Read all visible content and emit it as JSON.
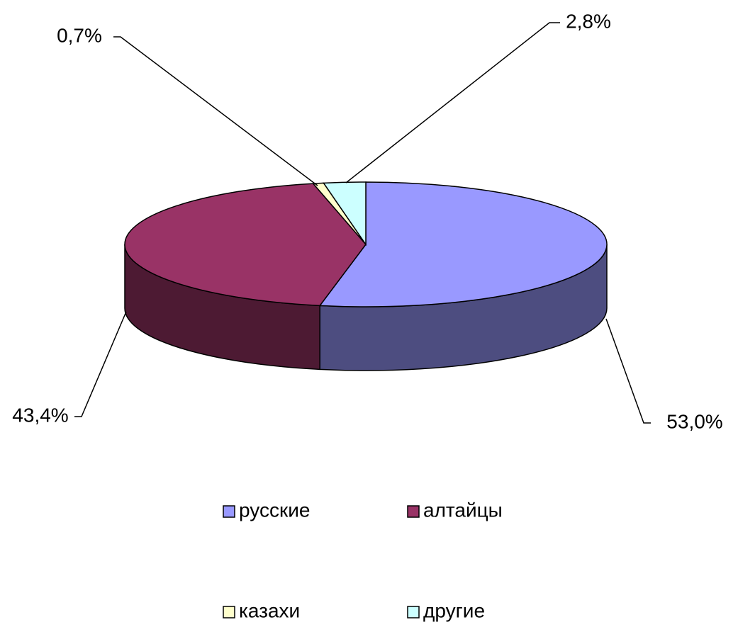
{
  "chart_data": {
    "type": "pie3d",
    "categories": [
      "русские",
      "алтайцы",
      "казахи",
      "другие"
    ],
    "values": [
      53.0,
      43.4,
      0.7,
      2.8
    ],
    "value_labels": [
      "53,0%",
      "43,4%",
      "0,7%",
      "2,8%"
    ],
    "colors": [
      "#9999ff",
      "#993366",
      "#ffffcc",
      "#ccffff"
    ],
    "side_colors": [
      "#4d4d80",
      "#4d1a33",
      "#80805f",
      "#668080"
    ],
    "legend": "bottom"
  }
}
